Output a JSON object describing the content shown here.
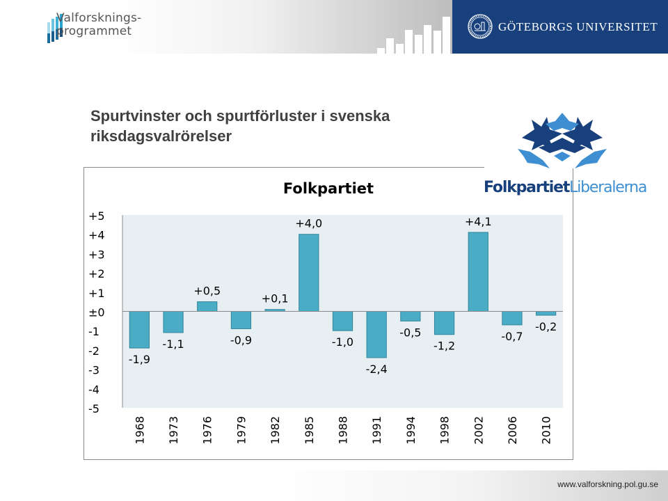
{
  "header": {
    "left_logo_text_line1": "Valforsknings-",
    "left_logo_text_line2": "programmet",
    "university_name": "GÖTEBORGS UNIVERSITET",
    "brand_color": "#17407d"
  },
  "slide": {
    "title": "Spurtvinster och spurtförluster i svenska riksdagsvalrörelser"
  },
  "party_logo": {
    "text_bold": "Folkpartiet",
    "text_light": "Liberalerna",
    "dark_color": "#17407d",
    "light_color": "#3d8fd1"
  },
  "footer": {
    "url": "www.valforskning.pol.gu.se"
  },
  "chart_data": {
    "type": "bar",
    "title": "Folkpartiet",
    "xlabel": "",
    "ylabel": "",
    "categories": [
      "1968",
      "1973",
      "1976",
      "1979",
      "1982",
      "1985",
      "1988",
      "1991",
      "1994",
      "1998",
      "2002",
      "2006",
      "2010"
    ],
    "values": [
      -1.9,
      -1.1,
      0.5,
      -0.9,
      0.1,
      4.0,
      -1.0,
      -2.4,
      -0.5,
      -1.2,
      4.1,
      -0.7,
      -0.2
    ],
    "data_labels": [
      "-1,9",
      "-1,1",
      "+0,5",
      "-0,9",
      "+0,1",
      "+4,0",
      "-1,0",
      "-2,4",
      "-0,5",
      "-1,2",
      "+4,1",
      "-0,7",
      "-0,2"
    ],
    "ylim": [
      -5,
      5
    ],
    "yticks": [
      5,
      4,
      3,
      2,
      1,
      0,
      -1,
      -2,
      -3,
      -4,
      -5
    ],
    "ytick_labels": [
      "+5",
      "+4",
      "+3",
      "+2",
      "+1",
      "±0",
      "-1",
      "-2",
      "-3",
      "-4",
      "-5"
    ],
    "x_tick_rotation": "vertical",
    "grid": false,
    "legend": "none",
    "bar_color": "#4bacc6",
    "bar_edge_color": "#31849b",
    "plot_background": "#e8eff3"
  }
}
